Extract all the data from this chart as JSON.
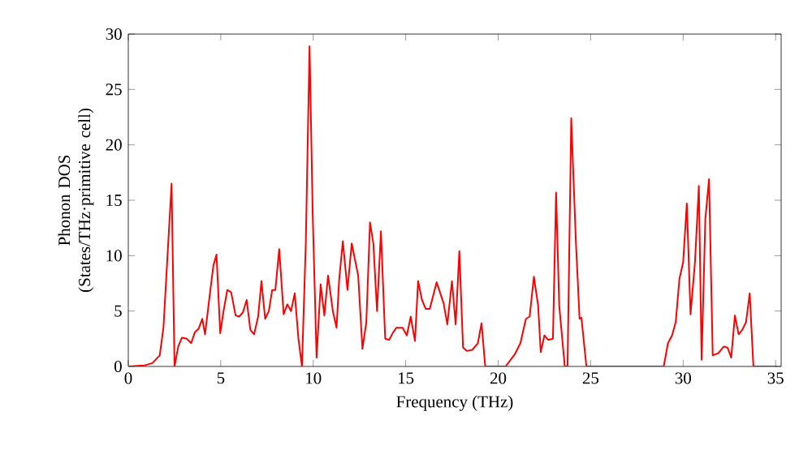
{
  "chart_data": {
    "type": "line",
    "xlabel": "Frequency (THz)",
    "ylabel": "Phonon DOS (States/THz·primitive cell)",
    "xlim": [
      0,
      35.3
    ],
    "ylim": [
      0,
      30
    ],
    "xticks": [
      0,
      5,
      10,
      15,
      20,
      25,
      30,
      35
    ],
    "yticks": [
      0,
      5,
      10,
      15,
      20,
      25,
      30
    ],
    "marker": "none",
    "line_style": "solid",
    "series": [
      {
        "color": "#ff0000",
        "x": [
          0,
          0.88,
          1.3,
          1.7,
          1.9,
          2.1,
          2.34,
          2.5,
          2.7,
          2.9,
          3.16,
          3.4,
          3.6,
          3.8,
          4.0,
          4.15,
          4.4,
          4.6,
          4.77,
          4.97,
          5.15,
          5.35,
          5.56,
          5.8,
          6.0,
          6.2,
          6.4,
          6.6,
          6.8,
          7.02,
          7.2,
          7.4,
          7.6,
          7.78,
          7.95,
          8.16,
          8.4,
          8.6,
          8.8,
          9.0,
          9.2,
          9.39,
          9.6,
          9.8,
          9.97,
          10.18,
          10.4,
          10.6,
          10.8,
          11.06,
          11.26,
          11.4,
          11.6,
          11.85,
          12.08,
          12.43,
          12.66,
          12.87,
          13.07,
          13.25,
          13.45,
          13.66,
          13.89,
          14.1,
          14.33,
          14.5,
          14.83,
          15.06,
          15.27,
          15.5,
          15.67,
          15.88,
          16.08,
          16.3,
          16.67,
          17.05,
          17.25,
          17.5,
          17.7,
          17.9,
          18.1,
          18.3,
          18.6,
          18.9,
          19.1,
          19.3,
          20.4,
          20.9,
          21.2,
          21.5,
          21.7,
          21.93,
          22.16,
          22.3,
          22.5,
          22.7,
          22.96,
          23.13,
          23.3,
          23.6,
          23.75,
          23.95,
          24.2,
          24.4,
          24.5,
          24.77,
          28.95,
          29.18,
          29.4,
          29.6,
          29.8,
          30.0,
          30.2,
          30.4,
          30.64,
          30.85,
          31.0,
          31.2,
          31.4,
          31.6,
          31.9,
          32.2,
          32.4,
          32.6,
          32.8,
          33.0,
          33.2,
          33.4,
          33.6,
          33.8,
          35.1
        ],
        "values": [
          0,
          0.1,
          0.3,
          1.0,
          3.5,
          9.4,
          16.5,
          0,
          1.8,
          2.6,
          2.5,
          2.1,
          3.1,
          3.4,
          4.3,
          2.9,
          6.4,
          9.1,
          10.1,
          3.0,
          5.0,
          6.9,
          6.7,
          4.6,
          4.5,
          4.9,
          6.0,
          3.3,
          2.9,
          4.5,
          7.7,
          4.3,
          5.0,
          6.9,
          6.9,
          10.6,
          4.7,
          5.6,
          5.0,
          6.6,
          2.5,
          0,
          11.3,
          28.9,
          13.8,
          0.8,
          7.4,
          4.6,
          8.2,
          5.0,
          3.5,
          7.8,
          11.3,
          6.9,
          11.1,
          8.2,
          1.6,
          4.0,
          13.0,
          11.1,
          5.0,
          12.2,
          2.5,
          2.4,
          3.1,
          3.5,
          3.5,
          2.8,
          4.5,
          2.3,
          7.7,
          6.0,
          5.2,
          5.2,
          7.6,
          5.7,
          3.8,
          7.7,
          3.8,
          10.4,
          1.7,
          1.4,
          1.5,
          2.1,
          3.9,
          0,
          0,
          1.1,
          2.1,
          4.3,
          4.5,
          8.1,
          5.5,
          1.3,
          2.8,
          2.4,
          2.5,
          15.7,
          5.5,
          0,
          0,
          22.4,
          11.3,
          4.3,
          4.4,
          0,
          0,
          2.1,
          2.8,
          4.0,
          7.9,
          9.4,
          14.7,
          4.7,
          9.4,
          16.3,
          0.6,
          13.3,
          16.9,
          1.0,
          1.2,
          1.8,
          1.7,
          0.8,
          4.6,
          2.9,
          3.3,
          4.0,
          6.6,
          0,
          0
        ]
      }
    ]
  }
}
